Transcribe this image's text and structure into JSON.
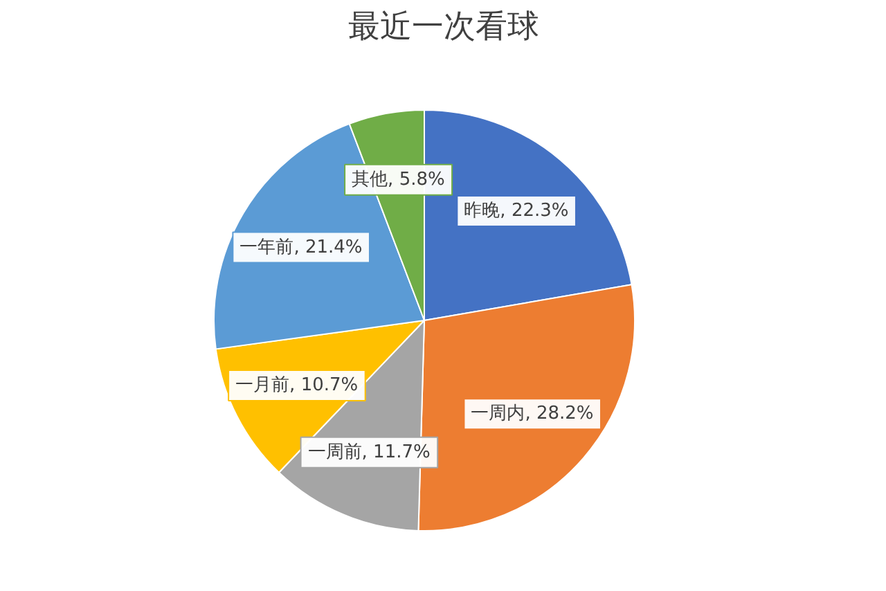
{
  "chart_data": {
    "type": "pie",
    "title": "最近一次看球",
    "categories": [
      "昨晚",
      "一周内",
      "一周前",
      "一月前",
      "一年前",
      "其他"
    ],
    "values": [
      22.3,
      28.2,
      11.7,
      10.7,
      21.4,
      5.8
    ],
    "colors": [
      "#4472c4",
      "#ed7d31",
      "#a5a5a5",
      "#ffc000",
      "#5b9bd5",
      "#70ad47"
    ],
    "value_labels": [
      ", 22.3%",
      ", 28.2%",
      ", 11.7%",
      ", 10.7%",
      ", 21.4%",
      ", 5.8%"
    ]
  }
}
